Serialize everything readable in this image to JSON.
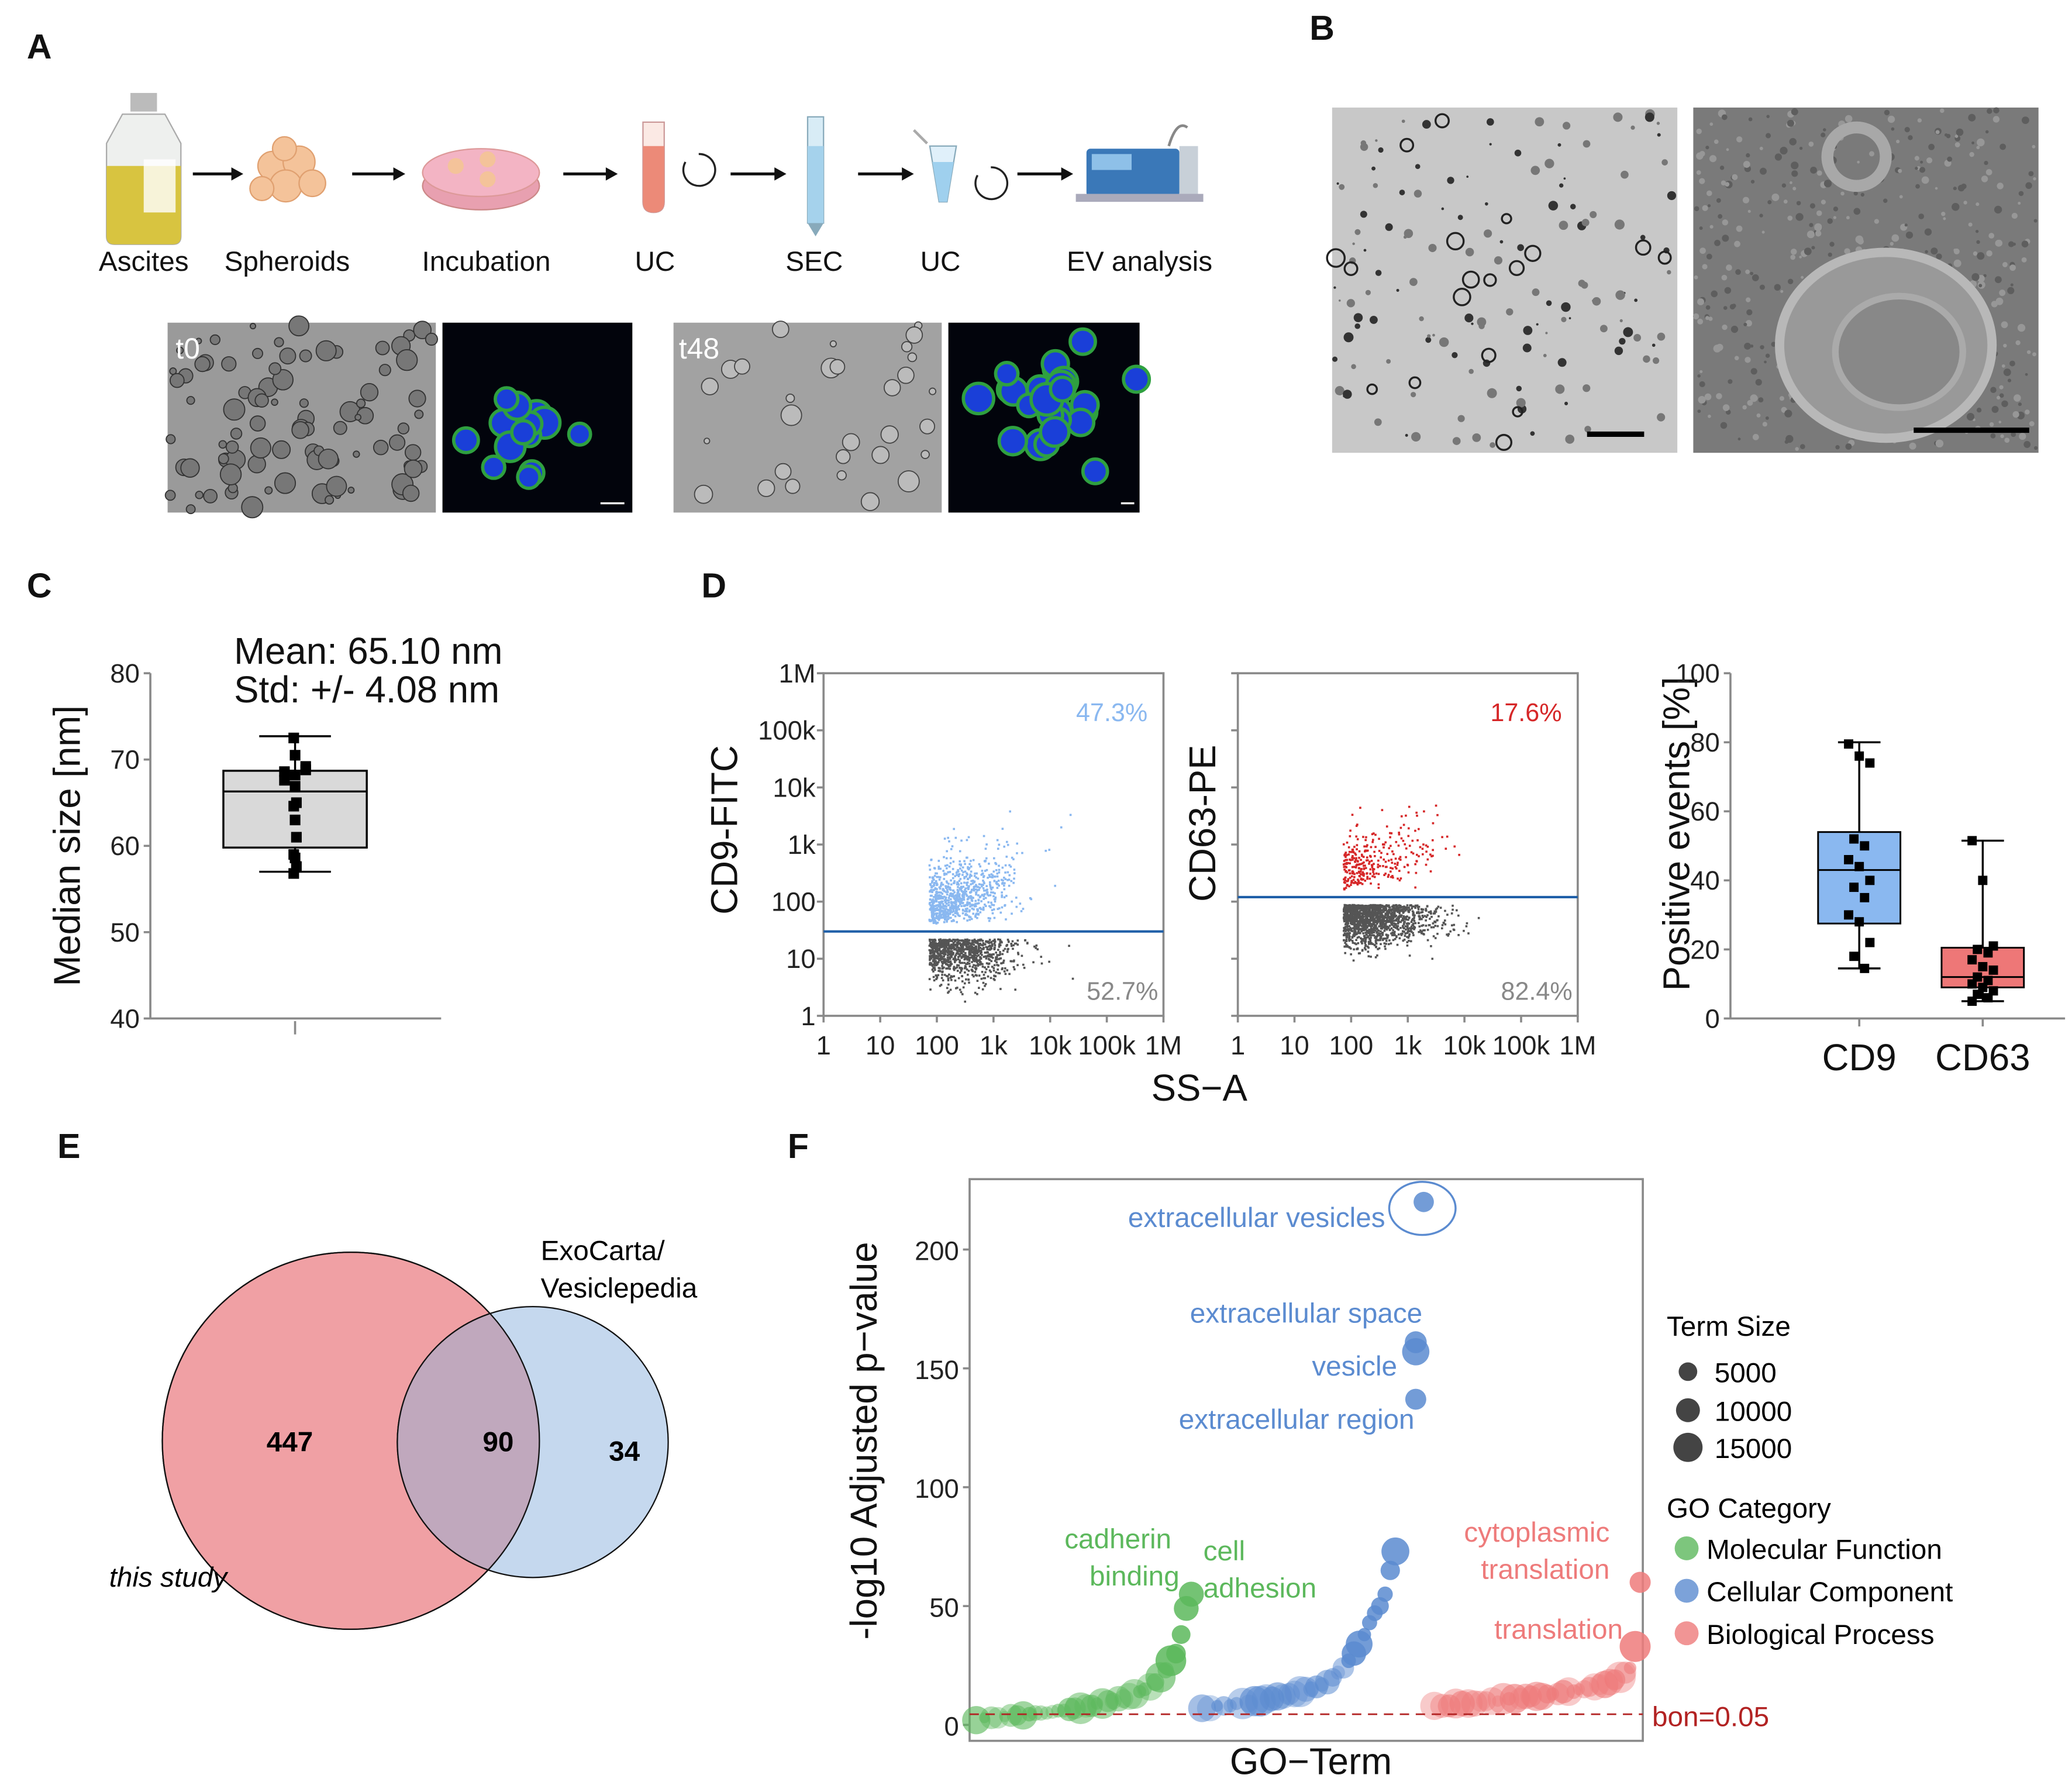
{
  "panels": {
    "A": {
      "label": "A",
      "steps": [
        "Ascites",
        "Spheroids",
        "Incubation",
        "UC",
        "SEC",
        "UC",
        "EV analysis"
      ],
      "micro_labels": [
        "t0",
        "t48"
      ]
    },
    "B": {
      "label": "B"
    },
    "C": {
      "label": "C",
      "mean_text": "Mean: 65.10 nm",
      "std_text": "Std: +/- 4.08 nm"
    },
    "D": {
      "label": "D"
    },
    "E": {
      "label": "E"
    },
    "F": {
      "label": "F"
    }
  },
  "colors": {
    "cd9": "#8ab8f0",
    "cd63": "#d62728",
    "negative": "#555555",
    "gate": "#1f5fa8",
    "box_c": "#d9d9d9",
    "box_cd9": "#8ab8f0",
    "box_cd63": "#ee7777",
    "mf": "#5cb85c",
    "cc": "#5b8bd0",
    "bp": "#ee7b7b",
    "bon": "#b22222",
    "venn_study": "#f0a0a4",
    "venn_db": "#c5d8ee",
    "venn_overlap": "#c0a8bd"
  },
  "chart_data": [
    {
      "id": "C",
      "type": "box",
      "ylabel": "Median size [nm]",
      "ylim": [
        40,
        80
      ],
      "yticks": [
        "40",
        "50",
        "60",
        "70",
        "80"
      ],
      "box": {
        "min": 57.0,
        "q1": 59.8,
        "median": 66.3,
        "q3": 68.7,
        "max": 72.7
      },
      "points": [
        72.5,
        70.5,
        69.2,
        68.6,
        68.2,
        68.8,
        67.6,
        66.9,
        65.0,
        64.6,
        63.0,
        61.0,
        59.0,
        58.6,
        57.6,
        56.8
      ]
    },
    {
      "id": "D-CD9",
      "type": "scatter",
      "scale": "log",
      "ylabel": "CD9-FITC",
      "xlabel": "SS−A",
      "xticks": [
        "1",
        "10",
        "100",
        "1k",
        "10k",
        "100k",
        "1M"
      ],
      "yticks": [
        "1",
        "10",
        "100",
        "1k",
        "10k",
        "100k",
        "1M"
      ],
      "xlim": [
        1,
        1000000
      ],
      "ylim": [
        1,
        1000000
      ],
      "gate": 30,
      "positive_pct": "47.3%",
      "negative_pct": "52.7%"
    },
    {
      "id": "D-CD63",
      "type": "scatter",
      "scale": "log",
      "ylabel": "CD63-PE",
      "xticks": [
        "1",
        "10",
        "100",
        "1k",
        "10k",
        "100k",
        "1M"
      ],
      "xlim": [
        1,
        1000000
      ],
      "ylim": [
        1,
        1000000
      ],
      "gate": 120,
      "positive_pct": "17.6%",
      "negative_pct": "82.4%"
    },
    {
      "id": "D-box",
      "type": "box",
      "ylabel": "Positive events [%]",
      "ylim": [
        0,
        100
      ],
      "yticks": [
        "0",
        "20",
        "40",
        "60",
        "80",
        "100"
      ],
      "categories": [
        "CD9",
        "CD63"
      ],
      "boxes": [
        {
          "min": 14.5,
          "q1": 27.5,
          "median": 43,
          "q3": 54,
          "max": 80,
          "points": [
            79.5,
            76,
            74,
            52,
            50,
            46,
            44,
            40,
            38,
            35,
            30,
            28,
            22,
            18,
            14.5
          ]
        },
        {
          "min": 5,
          "q1": 9,
          "median": 12,
          "q3": 20.5,
          "max": 51.5,
          "points": [
            51.5,
            40,
            21,
            20,
            19,
            17,
            15,
            14,
            12,
            11,
            10,
            9,
            8,
            7,
            6,
            5
          ]
        }
      ]
    },
    {
      "id": "E",
      "type": "venn",
      "sets": [
        {
          "name": "this study",
          "only": "447"
        },
        {
          "name_line1": "ExoCarta/",
          "name_line2": "Vesiclepedia",
          "only": "34"
        }
      ],
      "overlap": "90"
    },
    {
      "id": "F",
      "type": "scatter",
      "xlabel": "GO−Term",
      "ylabel": "-log10 Adjusted p−value",
      "ylim": [
        0,
        230
      ],
      "yticks": [
        "0",
        "50",
        "100",
        "150",
        "200"
      ],
      "threshold": {
        "value": 4.5,
        "label": "bon=0.05"
      },
      "legend": {
        "size_title": "Term Size",
        "sizes": [
          "5000",
          "10000",
          "15000"
        ],
        "cat_title": "GO Category",
        "categories": [
          "Molecular Function",
          "Cellular Component",
          "Biological Process"
        ]
      },
      "series": [
        {
          "name": "Molecular Function",
          "values": [
            2,
            3,
            3,
            3,
            3.5,
            4,
            4,
            4,
            4.5,
            5,
            5,
            5,
            5.5,
            6,
            6,
            6.5,
            7,
            7,
            8,
            8,
            9,
            9,
            10,
            10,
            11,
            11,
            12,
            13,
            14,
            15,
            16,
            18,
            20,
            23,
            27,
            30,
            38,
            49,
            55
          ]
        },
        {
          "name": "Cellular Component",
          "values": [
            7,
            7,
            8,
            8,
            8,
            9,
            9,
            9,
            10,
            10,
            11,
            11,
            12,
            12,
            13,
            13,
            14,
            15,
            15,
            16,
            17,
            18,
            20,
            22,
            24,
            27,
            30,
            34,
            38,
            43,
            47,
            50,
            55,
            65,
            73,
            137,
            157,
            161,
            220
          ]
        },
        {
          "name": "Biological Process",
          "values": [
            8,
            8,
            8,
            9,
            9,
            9,
            9,
            10,
            10,
            10,
            10,
            11,
            11,
            11,
            11,
            12,
            12,
            12,
            12,
            13,
            13,
            13,
            14,
            14,
            14,
            15,
            15,
            16,
            16,
            17,
            17,
            18,
            19,
            20,
            22,
            24,
            33,
            60
          ]
        }
      ],
      "annotations": {
        "ev": "extracellular vesicles",
        "space": "extracellular space",
        "vesicle": "vesicle",
        "region": "extracellular region",
        "cadherin1": "cadherin",
        "cadherin2": "binding",
        "adhesion1": "cell",
        "adhesion2": "adhesion",
        "cyto1": "cytoplasmic",
        "cyto2": "translation",
        "translation": "translation"
      }
    }
  ]
}
